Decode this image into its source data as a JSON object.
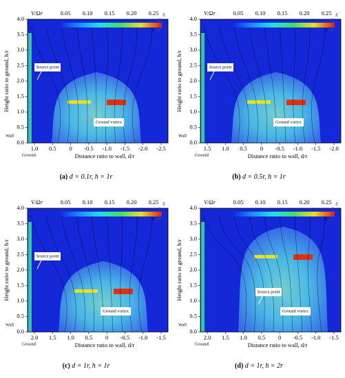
{
  "panels": [
    {
      "colorbar_title": "V/Ωr",
      "colorbar_ticks": [
        "0.05",
        "0.10",
        "0.15",
        "0.20",
        "0.25"
      ],
      "y_label": "Height ratio to ground, h/r",
      "x_label": "Distance ratio to wall, d/r",
      "yticks": [
        "0.0",
        "0.5",
        "1.0",
        "1.5",
        "2.0",
        "2.5",
        "3.0",
        "3.5",
        "4.0"
      ],
      "xticks": [
        "1.0",
        "0.5",
        "0",
        "-0.5",
        "-1.0",
        "-1.5",
        "-2.0",
        "-2.5"
      ],
      "annotations": {
        "source": "Source point",
        "vortex": "Ground vortex",
        "wall": "Wall",
        "ground": "Ground"
      },
      "axis_marks": [
        "Z",
        "X"
      ],
      "caption": {
        "label": "(a)",
        "text": "d = 0.1r, h = 1r"
      }
    },
    {
      "colorbar_title": "V/Ωr",
      "colorbar_ticks": [
        "0.05",
        "0.10",
        "0.15",
        "0.20",
        "0.25"
      ],
      "y_label": "Height ratio to ground, h/r",
      "x_label": "Distance ratio to wall, d/r",
      "yticks": [
        "0.0",
        "0.5",
        "1.0",
        "1.5",
        "2.0",
        "2.5",
        "3.0",
        "3.5",
        "4.0"
      ],
      "xticks": [
        "1.5",
        "1.0",
        "0.5",
        "0",
        "-0.5",
        "-1.0",
        "-1.5",
        "-2.0"
      ],
      "annotations": {
        "source": "Source point",
        "vortex": "Ground vortex",
        "wall": "Wall",
        "ground": "Ground"
      },
      "axis_marks": [
        "Z",
        "X"
      ],
      "caption": {
        "label": "(b)",
        "text": "d = 0.5r, h = 1r"
      }
    },
    {
      "colorbar_title": "V/Ωr",
      "colorbar_ticks": [
        "0.05",
        "0.10",
        "0.15",
        "0.20",
        "0.25"
      ],
      "y_label": "Height ratio to ground, h/r",
      "x_label": "Distance ratio to wall, d/r",
      "yticks": [
        "0.0",
        "0.5",
        "1.0",
        "1.5",
        "2.0",
        "2.5",
        "3.0",
        "3.5",
        "4.0"
      ],
      "xticks": [
        "2.0",
        "1.5",
        "1.0",
        "0.5",
        "0",
        "-0.5",
        "-1.0",
        "-1.5"
      ],
      "annotations": {
        "source": "Source point",
        "vortex": "Ground vortex",
        "wall": "Wall",
        "ground": "Ground"
      },
      "axis_marks": [
        "Z",
        "X"
      ],
      "caption": {
        "label": "(c)",
        "text": "d = 1r, h = 1r"
      }
    },
    {
      "colorbar_title": "V/Ωr",
      "colorbar_ticks": [
        "0.05",
        "0.10",
        "0.15",
        "0.20",
        "0.25"
      ],
      "y_label": "Height ratio to ground, h/r",
      "x_label": "Distance ratio to wall, d/r",
      "yticks": [
        "0.0",
        "0.5",
        "1.0",
        "1.5",
        "2.0",
        "2.5",
        "3.0",
        "3.5",
        "4.0"
      ],
      "xticks": [
        "2.0",
        "1.5",
        "1.0",
        "0.5",
        "0",
        "-0.5",
        "-1.0",
        "-1.5"
      ],
      "annotations": {
        "source": "Source point",
        "vortex": "Ground vortex",
        "wall": "Wall",
        "ground": "Ground"
      },
      "axis_marks": [
        "Z",
        "X"
      ],
      "caption": {
        "label": "(d)",
        "text": "d = 1r, h = 2r"
      }
    }
  ]
}
